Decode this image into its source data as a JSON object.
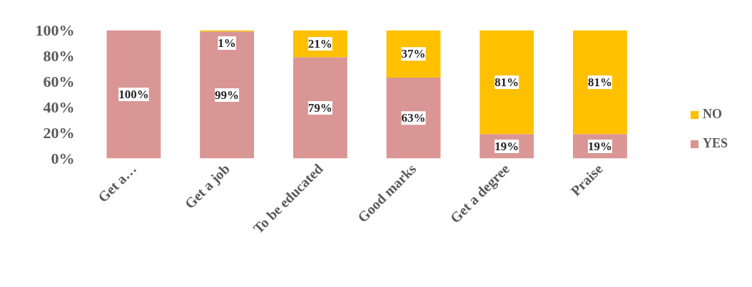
{
  "chart_data": {
    "type": "bar",
    "stacked": true,
    "categories": [
      "Get a…",
      "Get a job",
      "To be educated",
      "Good marks",
      "Get a degree",
      "Praise"
    ],
    "series": [
      {
        "name": "YES",
        "color": "#d99694",
        "values": [
          100,
          99,
          79,
          63,
          19,
          19
        ],
        "value_labels": [
          "100%",
          "99%",
          "79%",
          "63%",
          "19%",
          "19%"
        ]
      },
      {
        "name": "NO",
        "color": "#ffc000",
        "values": [
          0,
          1,
          21,
          37,
          81,
          81
        ],
        "value_labels": [
          null,
          "1%",
          "21%",
          "37%",
          "81%",
          "81%"
        ]
      }
    ],
    "ylim": [
      0,
      100
    ],
    "yticks": [
      {
        "value": 0,
        "label": "0%"
      },
      {
        "value": 20,
        "label": "20%"
      },
      {
        "value": 40,
        "label": "40%"
      },
      {
        "value": 60,
        "label": "60%"
      },
      {
        "value": 80,
        "label": "80%"
      },
      {
        "value": 100,
        "label": "100%"
      }
    ],
    "grid": false,
    "legend": "right"
  }
}
